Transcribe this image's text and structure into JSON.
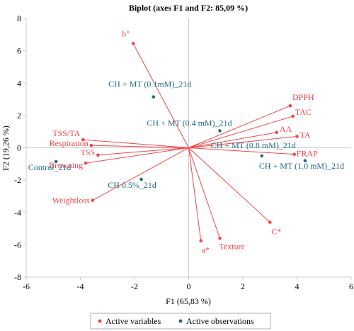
{
  "chart_data": {
    "type": "scatter",
    "title": "Biplot (axes F1 and F2: 85,09 %)",
    "xlabel": "F1 (65,83 %)",
    "ylabel": "F2 (19,26 %)",
    "xlim": [
      -6,
      6
    ],
    "ylim": [
      -8,
      8
    ],
    "xticks": [
      "-6",
      "-4",
      "-2",
      "0",
      "2",
      "4",
      "6"
    ],
    "yticks": [
      "-8",
      "-6",
      "-4",
      "-2",
      "0",
      "2",
      "4",
      "6",
      "8"
    ],
    "grid": false,
    "colors": {
      "variables": "#f0464b",
      "observations": "#1f6a86",
      "axis": "#cccccc"
    },
    "variables": [
      {
        "name": "h°",
        "x": -2.05,
        "y": 6.45
      },
      {
        "name": "DPPH",
        "x": 3.75,
        "y": 2.6
      },
      {
        "name": "TAC",
        "x": 3.85,
        "y": 1.95
      },
      {
        "name": "AA",
        "x": 3.25,
        "y": 0.95
      },
      {
        "name": "TA",
        "x": 4.0,
        "y": 0.7
      },
      {
        "name": "FRAP",
        "x": 3.9,
        "y": -0.4
      },
      {
        "name": "C*",
        "x": 3.0,
        "y": -4.6
      },
      {
        "name": "Texture",
        "x": 1.15,
        "y": -5.6
      },
      {
        "name": "a*",
        "x": 0.45,
        "y": -5.75
      },
      {
        "name": "TSS/TA",
        "x": -3.9,
        "y": 0.5
      },
      {
        "name": "Respiration",
        "x": -3.6,
        "y": 0.15
      },
      {
        "name": "TSS",
        "x": -3.35,
        "y": -0.45
      },
      {
        "name": "Browning",
        "x": -3.8,
        "y": -0.95
      },
      {
        "name": "Weightloss",
        "x": -3.55,
        "y": -3.25
      }
    ],
    "observations": [
      {
        "name": "CH + MT (0.1mM)_21d",
        "x": -1.3,
        "y": 3.15
      },
      {
        "name": "CH + MT (0.4 mM)_21d",
        "x": 1.15,
        "y": 1.05
      },
      {
        "name": "CH + MT (0.8 mM)_21d",
        "x": 2.7,
        "y": -0.5
      },
      {
        "name": "CH + MT (1.0 mM)_21d",
        "x": 4.3,
        "y": -0.8
      },
      {
        "name": "Control_21d",
        "x": -4.9,
        "y": -0.85
      },
      {
        "name": "CH 0.5%_21d",
        "x": -1.75,
        "y": -1.95
      }
    ],
    "legend": {
      "placement": "bottom",
      "entries": [
        "Active variables",
        "Active observations"
      ]
    }
  }
}
